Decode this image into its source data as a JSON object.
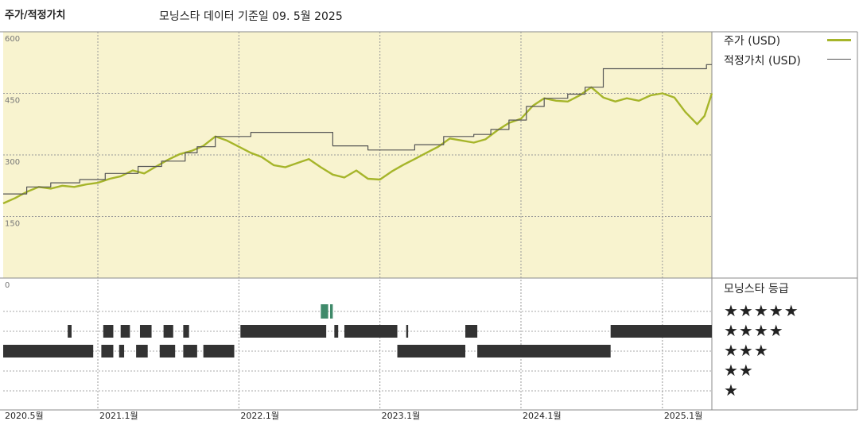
{
  "header": {
    "left_title": "주가/적정가치",
    "main_title": "모닝스타 데이터 기준일 09. 5월 2025"
  },
  "legend": {
    "price_label": "주가 (USD)",
    "fair_label": "적정가치 (USD)"
  },
  "rating_panel": {
    "title": "모닝스타 등급",
    "stars": [
      "★★★★★",
      "★★★★",
      "★★★",
      "★★",
      "★"
    ]
  },
  "colors": {
    "panel_bg": "#f8f3cf",
    "price_line": "#a6b52a",
    "fair_line": "#555555",
    "rating_bar": "#333333",
    "rating_bar_5": "#3f8a6a"
  },
  "chart_data": {
    "type": "line",
    "x_start": "2020-05-01",
    "x_end": "2025-05-09",
    "xticks": [
      {
        "date": "2020-05-01",
        "label": "2020.5월"
      },
      {
        "date": "2021-01-01",
        "label": "2021.1월"
      },
      {
        "date": "2022-01-01",
        "label": "2022.1월"
      },
      {
        "date": "2023-01-01",
        "label": "2023.1월"
      },
      {
        "date": "2024-01-01",
        "label": "2024.1월"
      },
      {
        "date": "2025-01-01",
        "label": "2025.1월"
      }
    ],
    "ylim": [
      0,
      600
    ],
    "yticks": [
      0,
      150,
      300,
      450,
      600
    ],
    "grid": true,
    "series": [
      {
        "name": "주가 (USD)",
        "color": "#a6b52a",
        "points": [
          [
            "2020-05-01",
            182
          ],
          [
            "2020-06-01",
            195
          ],
          [
            "2020-07-01",
            210
          ],
          [
            "2020-08-01",
            222
          ],
          [
            "2020-09-01",
            218
          ],
          [
            "2020-10-01",
            225
          ],
          [
            "2020-11-01",
            222
          ],
          [
            "2020-12-01",
            228
          ],
          [
            "2021-01-01",
            232
          ],
          [
            "2021-02-01",
            242
          ],
          [
            "2021-03-01",
            248
          ],
          [
            "2021-04-01",
            262
          ],
          [
            "2021-05-01",
            255
          ],
          [
            "2021-06-01",
            272
          ],
          [
            "2021-07-01",
            288
          ],
          [
            "2021-08-01",
            302
          ],
          [
            "2021-09-01",
            310
          ],
          [
            "2021-10-01",
            322
          ],
          [
            "2021-11-01",
            345
          ],
          [
            "2021-12-01",
            335
          ],
          [
            "2022-01-01",
            320
          ],
          [
            "2022-02-01",
            305
          ],
          [
            "2022-03-01",
            295
          ],
          [
            "2022-04-01",
            275
          ],
          [
            "2022-05-01",
            270
          ],
          [
            "2022-06-01",
            280
          ],
          [
            "2022-07-01",
            290
          ],
          [
            "2022-08-01",
            270
          ],
          [
            "2022-09-01",
            252
          ],
          [
            "2022-10-01",
            245
          ],
          [
            "2022-11-01",
            262
          ],
          [
            "2022-12-01",
            242
          ],
          [
            "2023-01-01",
            240
          ],
          [
            "2023-02-01",
            260
          ],
          [
            "2023-03-01",
            275
          ],
          [
            "2023-04-01",
            290
          ],
          [
            "2023-05-01",
            305
          ],
          [
            "2023-06-01",
            320
          ],
          [
            "2023-07-01",
            340
          ],
          [
            "2023-08-01",
            335
          ],
          [
            "2023-09-01",
            330
          ],
          [
            "2023-10-01",
            338
          ],
          [
            "2023-11-01",
            360
          ],
          [
            "2023-12-01",
            378
          ],
          [
            "2024-01-01",
            388
          ],
          [
            "2024-02-01",
            420
          ],
          [
            "2024-03-01",
            438
          ],
          [
            "2024-04-01",
            432
          ],
          [
            "2024-05-01",
            430
          ],
          [
            "2024-06-01",
            445
          ],
          [
            "2024-07-01",
            465
          ],
          [
            "2024-08-01",
            440
          ],
          [
            "2024-09-01",
            430
          ],
          [
            "2024-10-01",
            438
          ],
          [
            "2024-11-01",
            432
          ],
          [
            "2024-12-01",
            445
          ],
          [
            "2025-01-01",
            450
          ],
          [
            "2025-02-01",
            440
          ],
          [
            "2025-03-01",
            405
          ],
          [
            "2025-04-01",
            375
          ],
          [
            "2025-04-20",
            395
          ],
          [
            "2025-05-09",
            450
          ]
        ]
      },
      {
        "name": "적정가치 (USD)",
        "color": "#555555",
        "step": true,
        "points": [
          [
            "2020-05-01",
            205
          ],
          [
            "2020-07-01",
            222
          ],
          [
            "2020-09-01",
            232
          ],
          [
            "2020-11-15",
            240
          ],
          [
            "2021-01-20",
            255
          ],
          [
            "2021-04-15",
            272
          ],
          [
            "2021-06-15",
            285
          ],
          [
            "2021-08-15",
            305
          ],
          [
            "2021-09-15",
            320
          ],
          [
            "2021-11-01",
            345
          ],
          [
            "2022-02-01",
            355
          ],
          [
            "2022-09-01",
            322
          ],
          [
            "2022-12-01",
            312
          ],
          [
            "2023-04-01",
            325
          ],
          [
            "2023-06-15",
            345
          ],
          [
            "2023-09-01",
            350
          ],
          [
            "2023-10-15",
            362
          ],
          [
            "2023-12-01",
            385
          ],
          [
            "2024-01-15",
            418
          ],
          [
            "2024-03-01",
            438
          ],
          [
            "2024-05-01",
            448
          ],
          [
            "2024-06-15",
            465
          ],
          [
            "2024-08-01",
            510
          ],
          [
            "2025-04-25",
            520
          ],
          [
            "2025-05-09",
            520
          ]
        ]
      }
    ],
    "ratings": [
      {
        "stars": 5,
        "periods": [
          [
            "2022-08-01",
            "2022-08-20"
          ],
          [
            "2022-08-25",
            "2022-09-01"
          ]
        ]
      },
      {
        "stars": 4,
        "periods": [
          [
            "2020-10-15",
            "2020-10-25"
          ],
          [
            "2021-01-15",
            "2021-02-10"
          ],
          [
            "2021-03-01",
            "2021-03-25"
          ],
          [
            "2021-04-20",
            "2021-05-20"
          ],
          [
            "2021-06-20",
            "2021-07-15"
          ],
          [
            "2021-08-10",
            "2021-08-25"
          ],
          [
            "2022-01-05",
            "2022-08-15"
          ],
          [
            "2022-09-05",
            "2022-09-15"
          ],
          [
            "2022-10-01",
            "2023-02-15"
          ],
          [
            "2023-03-10",
            "2023-03-15"
          ],
          [
            "2023-08-10",
            "2023-09-10"
          ],
          [
            "2024-08-20",
            "2025-05-09"
          ]
        ]
      },
      {
        "stars": 3,
        "periods": [
          [
            "2020-05-01",
            "2020-12-20"
          ],
          [
            "2021-01-10",
            "2021-02-10"
          ],
          [
            "2021-02-25",
            "2021-03-10"
          ],
          [
            "2021-04-10",
            "2021-05-10"
          ],
          [
            "2021-06-10",
            "2021-07-20"
          ],
          [
            "2021-08-10",
            "2021-09-15"
          ],
          [
            "2021-10-01",
            "2021-12-20"
          ],
          [
            "2023-02-15",
            "2023-08-10"
          ],
          [
            "2023-09-10",
            "2024-08-20"
          ]
        ]
      },
      {
        "stars": 2,
        "periods": []
      },
      {
        "stars": 1,
        "periods": []
      }
    ]
  }
}
